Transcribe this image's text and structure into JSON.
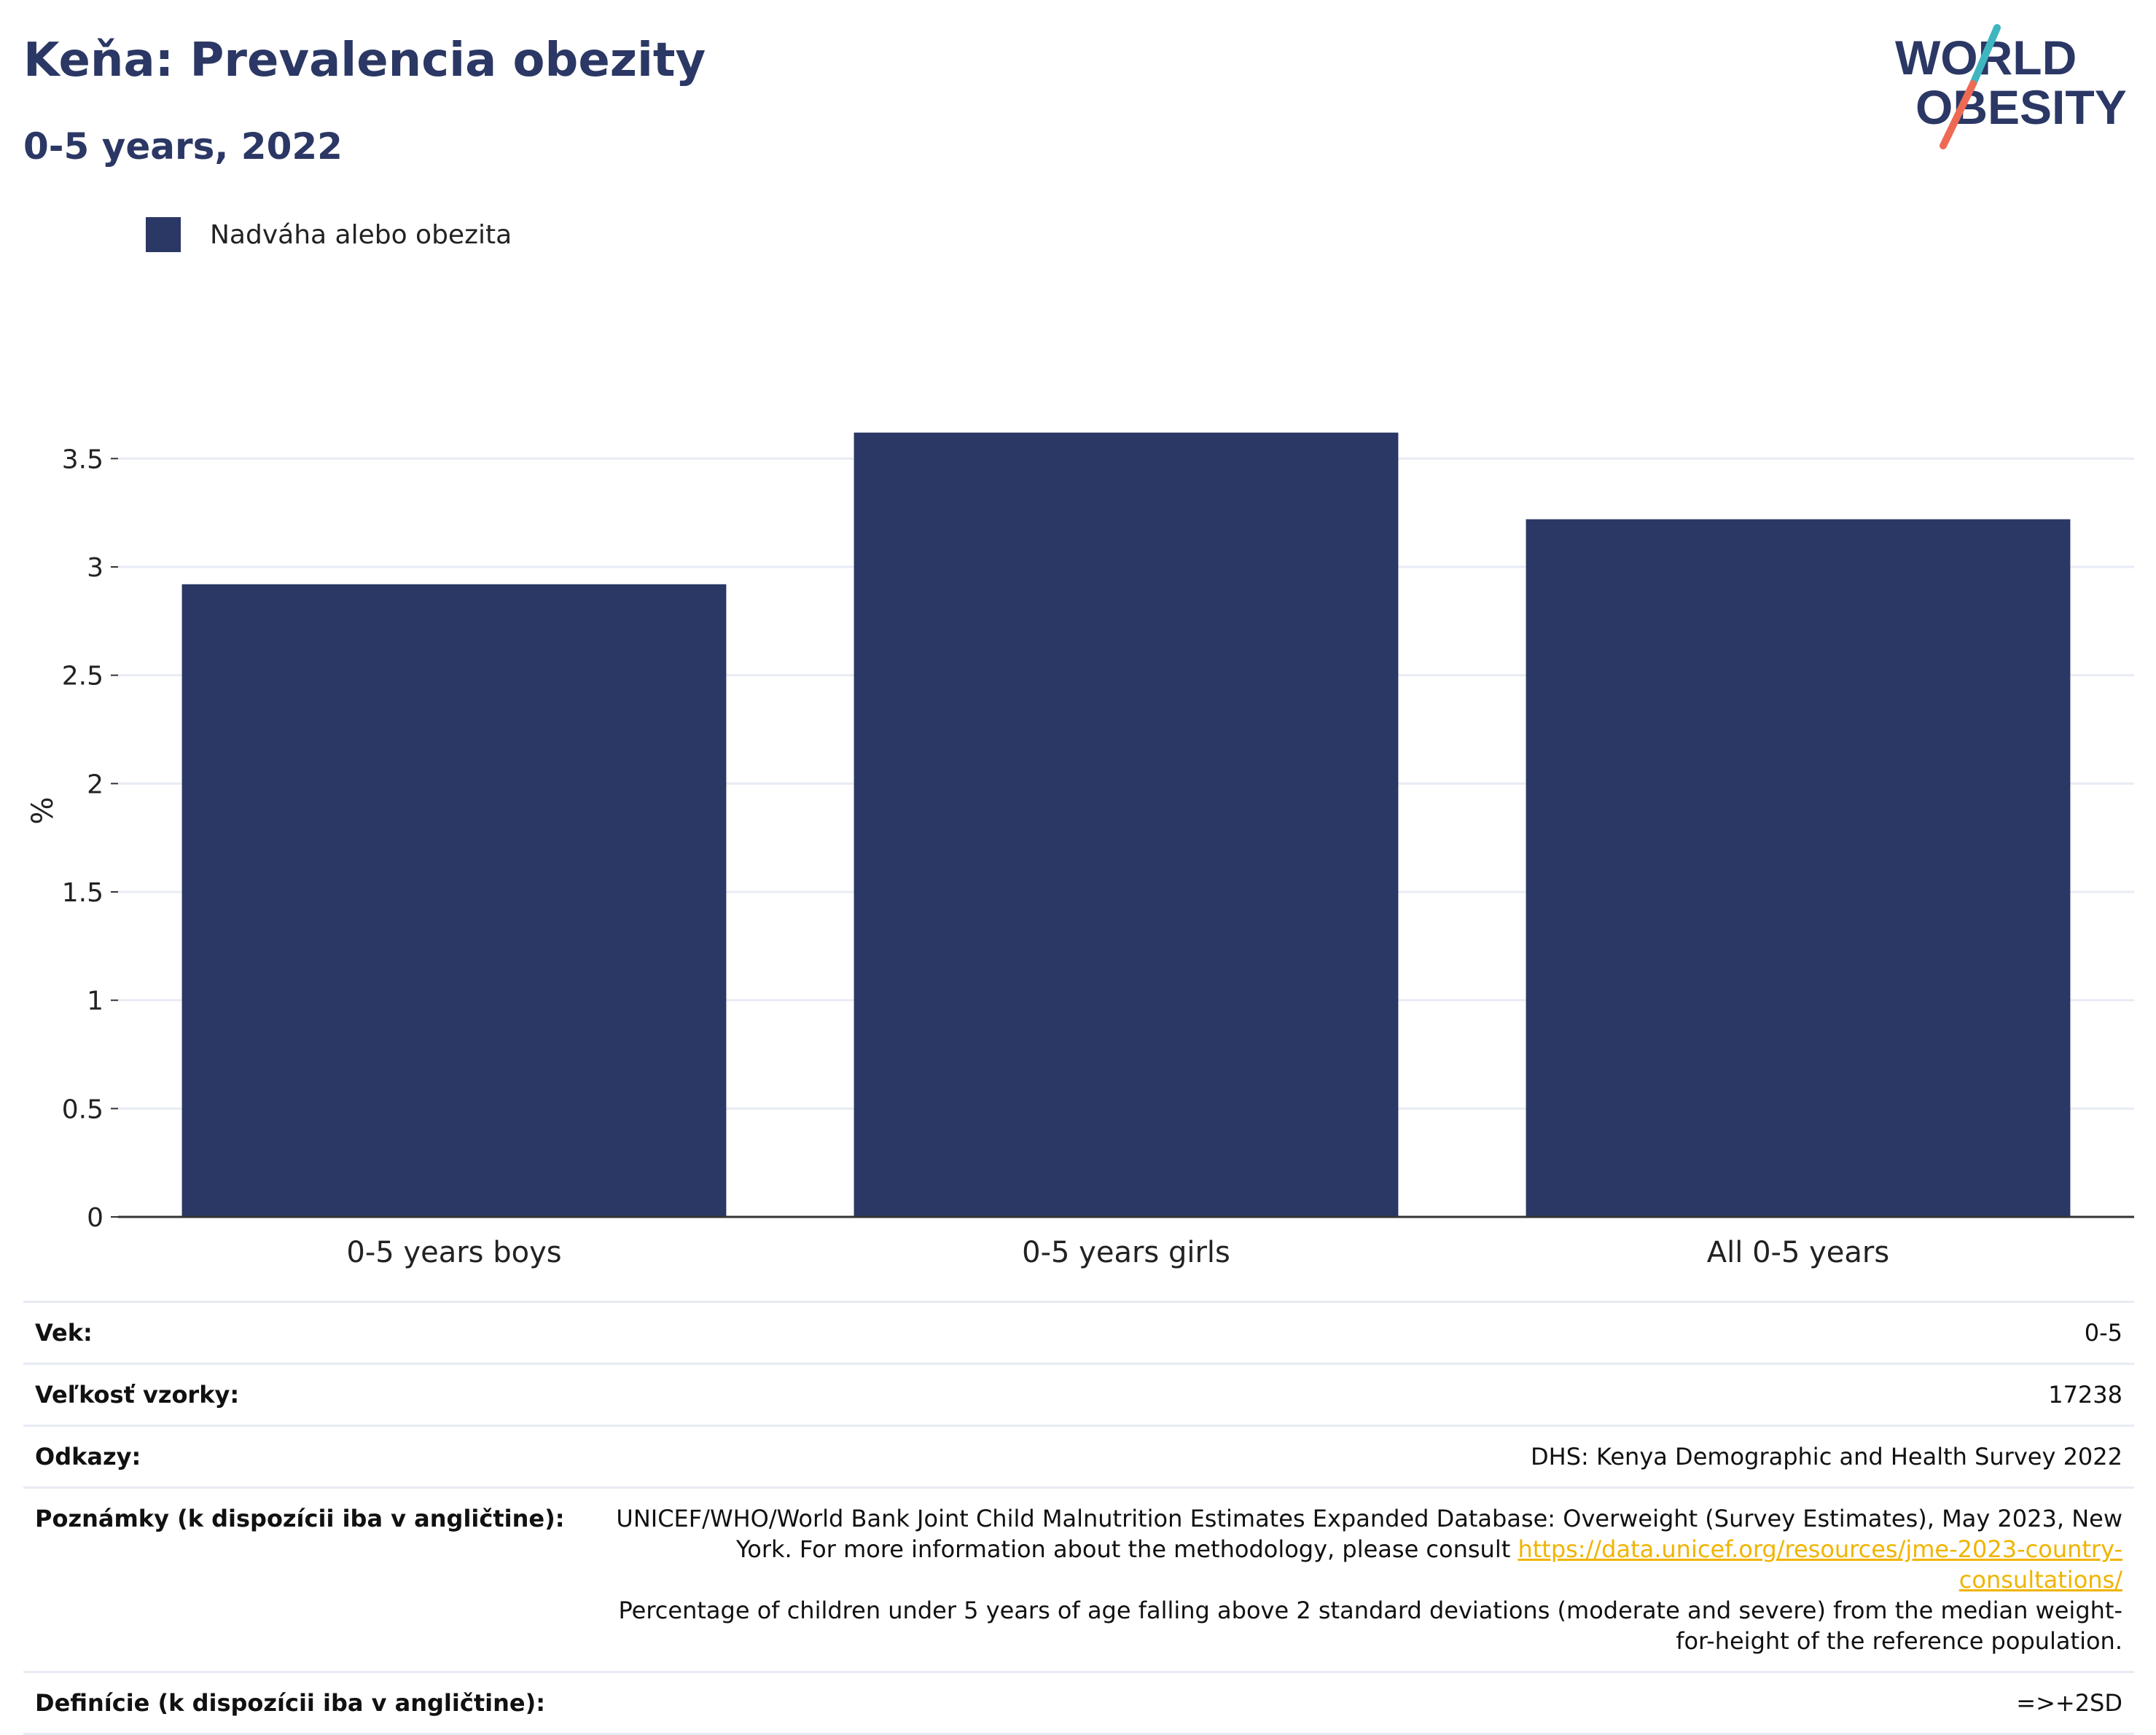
{
  "header": {
    "title": "Keňa: Prevalencia obezity",
    "subtitle": "0-5 years, 2022"
  },
  "logo": {
    "line1": "WORLD",
    "line2": "OBESITY",
    "colors": {
      "text": "#2b3764",
      "slash_top": "#3fb5c0",
      "slash_bottom": "#ee6a54"
    }
  },
  "legend": {
    "label": "Nadváha alebo obezita",
    "color": "#2b3764"
  },
  "chart_data": {
    "type": "bar",
    "categories": [
      "0-5 years boys",
      "0-5 years girls",
      "All 0-5 years"
    ],
    "series": [
      {
        "name": "Nadváha alebo obezita",
        "values": [
          2.92,
          3.62,
          3.22
        ],
        "color": "#2b3764"
      }
    ],
    "xlabel": "",
    "ylabel": "%",
    "ylim": [
      0,
      3.75
    ],
    "yticks": [
      0,
      0.5,
      1,
      1.5,
      2,
      2.5,
      3,
      3.5
    ],
    "ytick_labels": [
      "0",
      "0.5",
      "1",
      "1.5",
      "2",
      "2.5",
      "3",
      "3.5"
    ],
    "grid": true,
    "legend_position": "top-left"
  },
  "meta": [
    {
      "key": "Vek:",
      "value": "0-5"
    },
    {
      "key": "Veľkosť vzorky:",
      "value": "17238"
    },
    {
      "key": "Odkazy:",
      "value": "DHS: Kenya Demographic and Health Survey 2022"
    },
    {
      "key": "Poznámky (k dispozícii iba v angličtine):",
      "value_before": "UNICEF/WHO/World Bank Joint Child Malnutrition Estimates Expanded Database: Overweight (Survey Estimates), May 2023, New York. For more information about the methodology, please consult ",
      "link": "https://data.unicef.org/resources/jme-2023-country-consultations/",
      "value_after": "Percentage of children under 5 years of age falling above 2 standard deviations (moderate and severe) from the median weight-for-height of the reference population."
    },
    {
      "key": "Definície (k dispozícii iba v angličtine):",
      "value": "=>+2SD"
    }
  ]
}
